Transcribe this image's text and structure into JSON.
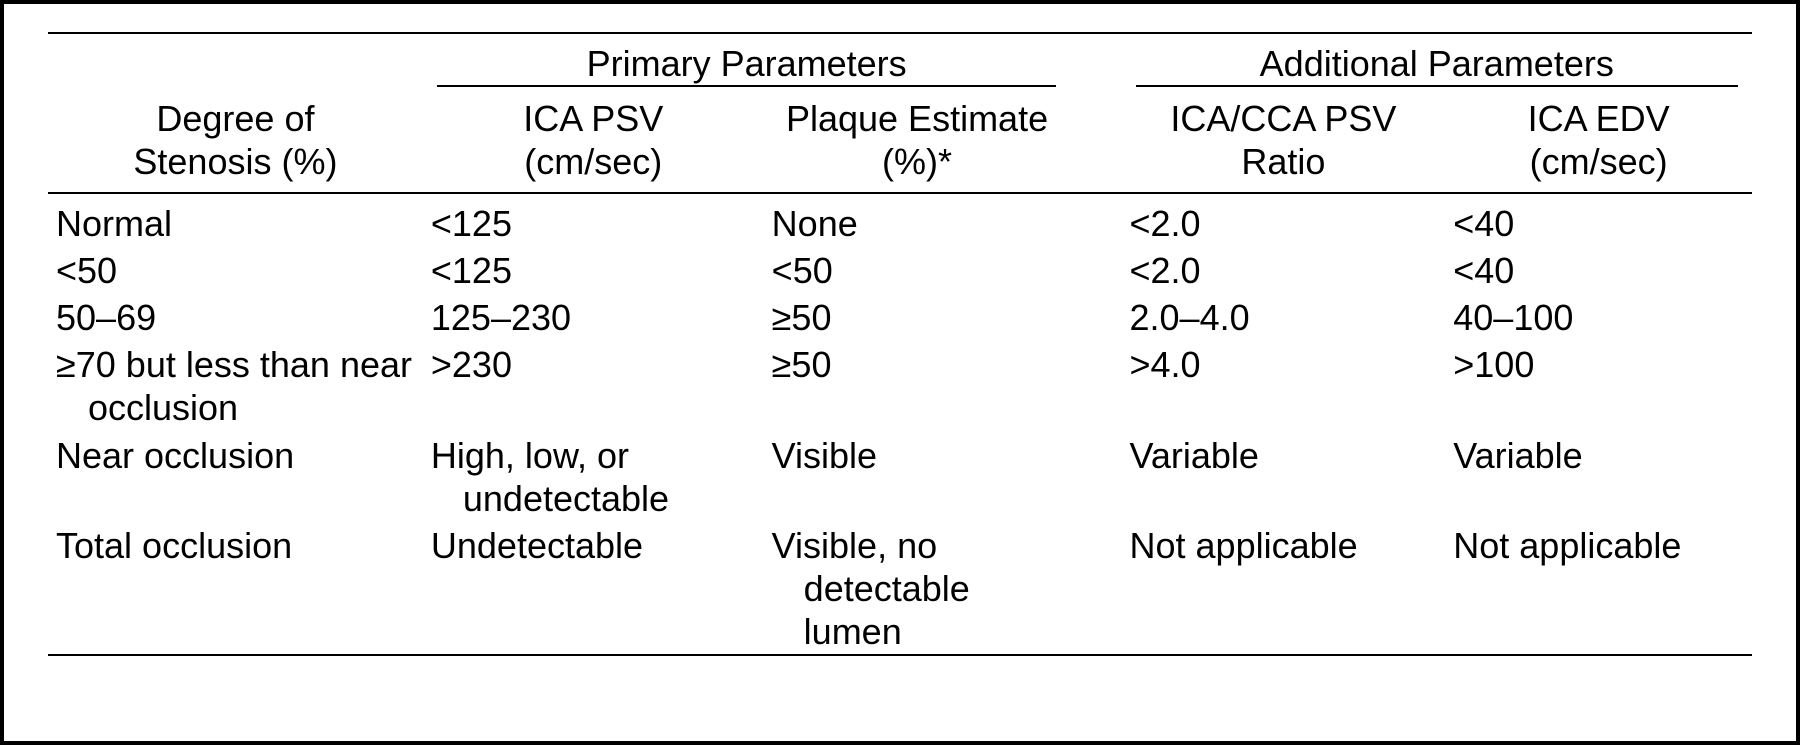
{
  "table": {
    "font_size_pt": 27,
    "text_color": "#000000",
    "border_color": "#000000",
    "background_color": "#ffffff",
    "columns": {
      "degree": {
        "label_line1": "Degree of",
        "label_line2": "Stenosis (%)"
      },
      "ica_psv": {
        "label_line1": "ICA PSV",
        "label_line2": "(cm/sec)"
      },
      "plaque": {
        "label_line1": "Plaque Estimate",
        "label_line2": "(%)*"
      },
      "ratio": {
        "label_line1": "ICA/CCA PSV",
        "label_line2": "Ratio"
      },
      "ica_edv": {
        "label_line1": "ICA EDV",
        "label_line2": "(cm/sec)"
      }
    },
    "super_headers": {
      "primary": "Primary Parameters",
      "additional": "Additional Parameters"
    },
    "rows": [
      {
        "degree": "Normal",
        "ica_psv": "<125",
        "plaque": "None",
        "ratio": "<2.0",
        "ica_edv": "<40"
      },
      {
        "degree": "<50",
        "ica_psv": "<125",
        "plaque": "<50",
        "ratio": "<2.0",
        "ica_edv": "<40"
      },
      {
        "degree": "50–69",
        "ica_psv": "125–230",
        "plaque": "≥50",
        "ratio": "2.0–4.0",
        "ica_edv": "40–100"
      },
      {
        "degree": "≥70 but less than near occlusion",
        "ica_psv": ">230",
        "plaque": "≥50",
        "ratio": ">4.0",
        "ica_edv": ">100"
      },
      {
        "degree": "Near occlusion",
        "ica_psv": "High, low, or undetectable",
        "plaque": "Visible",
        "ratio": "Variable",
        "ica_edv": "Variable"
      },
      {
        "degree": "Total occlusion",
        "ica_psv": "Undetectable",
        "plaque": "Visible, no detectable lumen",
        "ratio": "Not applicable",
        "ica_edv": "Not applicable"
      }
    ]
  }
}
